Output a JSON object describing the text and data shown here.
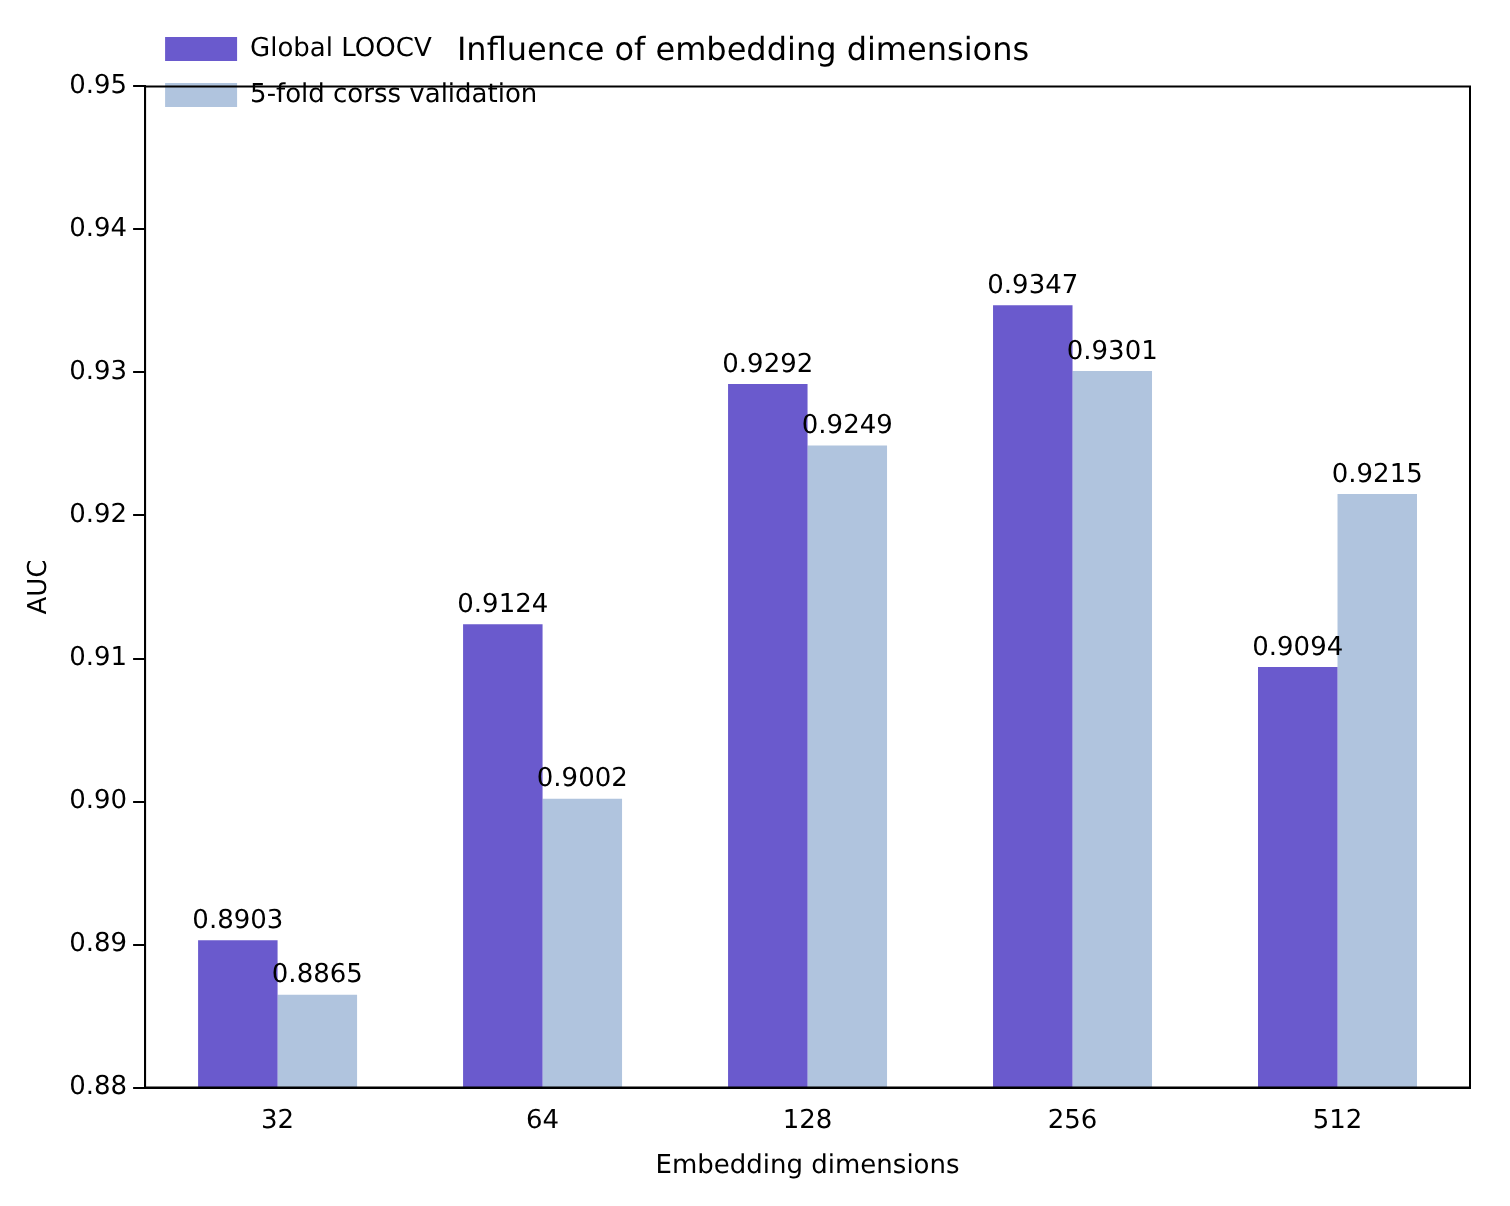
{
  "chart_data": {
    "type": "bar",
    "title": "Influence of embedding dimensions",
    "xlabel": "Embedding dimensions",
    "ylabel": "AUC",
    "categories": [
      "32",
      "64",
      "128",
      "256",
      "512"
    ],
    "series": [
      {
        "name": "Global LOOCV",
        "color": "#6a5acd",
        "values": [
          0.8903,
          0.9124,
          0.9292,
          0.9347,
          0.9094
        ]
      },
      {
        "name": "5-fold corss validation",
        "color": "#b0c4de",
        "values": [
          0.8865,
          0.9002,
          0.9249,
          0.9301,
          0.9215
        ]
      }
    ],
    "ylim": [
      0.88,
      0.95
    ],
    "yticks": [
      0.88,
      0.89,
      {
        "value": 0.9,
        "label": "0.90"
      },
      0.91,
      0.92,
      0.93,
      0.94,
      0.95
    ],
    "data_labels": true,
    "legend": "top left",
    "grid": false
  }
}
